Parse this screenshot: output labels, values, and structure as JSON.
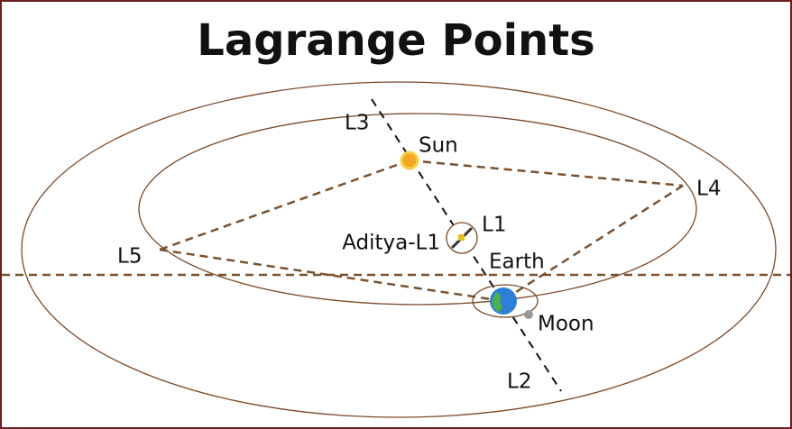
{
  "header": {
    "title": "Lagrange Points"
  },
  "labels": {
    "l3": "L3",
    "sun": "Sun",
    "l4": "L4",
    "l1": "L1",
    "aditya": "Aditya-L1",
    "l5": "L5",
    "earth": "Earth",
    "moon": "Moon",
    "l2": "L2"
  }
}
